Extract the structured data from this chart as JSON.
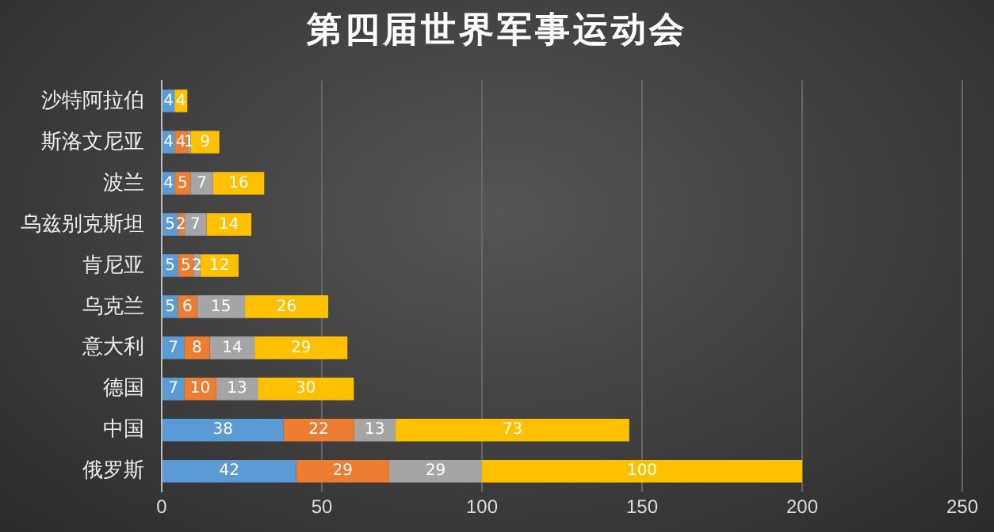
{
  "chart_data": {
    "type": "bar",
    "orientation": "horizontal",
    "stacked": true,
    "title": "第四届世界军事运动会",
    "categories": [
      "沙特阿拉伯",
      "斯洛文尼亚",
      "波兰",
      "乌兹别克斯坦",
      "肯尼亚",
      "乌克兰",
      "意大利",
      "德国",
      "中国",
      "俄罗斯"
    ],
    "series": [
      {
        "color": "#5b9bd5",
        "values": [
          4,
          4,
          4,
          5,
          5,
          5,
          7,
          7,
          38,
          42
        ],
        "value_labels": [
          "4",
          "4",
          "4",
          "5",
          "5",
          "5",
          "7",
          "7",
          "38",
          "42"
        ]
      },
      {
        "color": "#ed7d31",
        "values": [
          0,
          4,
          5,
          2,
          5,
          6,
          8,
          10,
          22,
          29
        ],
        "value_labels": [
          null,
          "4",
          "5",
          "2",
          "5",
          "6",
          "8",
          "10",
          "22",
          "29"
        ]
      },
      {
        "color": "#a5a5a5",
        "values": [
          0,
          1,
          7,
          7,
          2,
          15,
          14,
          13,
          13,
          29
        ],
        "value_labels": [
          null,
          "1",
          "7",
          "7",
          "2",
          "15",
          "14",
          "13",
          "13",
          "29"
        ]
      },
      {
        "color": "#ffc000",
        "values": [
          4,
          9,
          16,
          14,
          12,
          26,
          29,
          30,
          73,
          100
        ],
        "value_labels": [
          "4",
          "9",
          "16",
          "14",
          "12",
          "26",
          "29",
          "30",
          "73",
          "100"
        ]
      }
    ],
    "xlim": [
      0,
      250
    ],
    "xticks": [
      0,
      50,
      100,
      150,
      200,
      250
    ],
    "grid": "x",
    "legend": false
  }
}
